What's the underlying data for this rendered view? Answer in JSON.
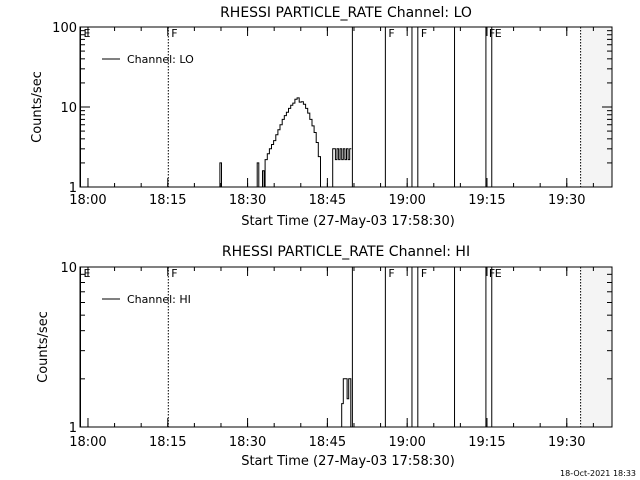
{
  "footer": {
    "timestamp": "18-Oct-2021 18:33"
  },
  "chart_data": [
    {
      "type": "line",
      "title": "RHESSI PARTICLE_RATE Channel: LO",
      "xlabel": "Start Time (27-May-03 17:58:30)",
      "ylabel": "Counts/sec",
      "y_scale": "log",
      "xlim_minutes": [
        0,
        100
      ],
      "ylim": [
        1,
        100
      ],
      "x_ticks": [
        {
          "t": 1.5,
          "label": "18:00"
        },
        {
          "t": 16.5,
          "label": "18:15"
        },
        {
          "t": 31.5,
          "label": "18:30"
        },
        {
          "t": 46.5,
          "label": "18:45"
        },
        {
          "t": 61.5,
          "label": "19:00"
        },
        {
          "t": 76.5,
          "label": "19:15"
        },
        {
          "t": 91.5,
          "label": "19:30"
        }
      ],
      "y_ticks": [
        {
          "v": 1,
          "label": "1"
        },
        {
          "v": 10,
          "label": "10"
        },
        {
          "v": 100,
          "label": "100"
        }
      ],
      "legend": {
        "label": "Channel: LO",
        "position": "top-left"
      },
      "series": [
        {
          "name": "Channel: LO",
          "points": [
            [
              26.3,
              1
            ],
            [
              26.3,
              2
            ],
            [
              26.6,
              2
            ],
            [
              26.6,
              1
            ],
            [
              33.3,
              1
            ],
            [
              33.3,
              2
            ],
            [
              33.6,
              2
            ],
            [
              33.6,
              1
            ],
            [
              34.3,
              1
            ],
            [
              34.3,
              1.6
            ],
            [
              34.6,
              1.6
            ],
            [
              34.6,
              1
            ],
            [
              34.8,
              1
            ],
            [
              34.8,
              2.2
            ],
            [
              35.2,
              2.2
            ],
            [
              35.2,
              2.6
            ],
            [
              35.6,
              2.6
            ],
            [
              35.6,
              3
            ],
            [
              36.0,
              3
            ],
            [
              36.0,
              3.4
            ],
            [
              36.4,
              3.4
            ],
            [
              36.4,
              3.8
            ],
            [
              36.8,
              3.8
            ],
            [
              36.8,
              4.5
            ],
            [
              37.2,
              4.5
            ],
            [
              37.2,
              5.2
            ],
            [
              37.6,
              5.2
            ],
            [
              37.6,
              6
            ],
            [
              38.0,
              6
            ],
            [
              38.0,
              7
            ],
            [
              38.4,
              7
            ],
            [
              38.4,
              7.8
            ],
            [
              38.8,
              7.8
            ],
            [
              38.8,
              8.6
            ],
            [
              39.2,
              8.6
            ],
            [
              39.2,
              9.6
            ],
            [
              39.6,
              9.6
            ],
            [
              39.6,
              10.5
            ],
            [
              40.0,
              10.5
            ],
            [
              40.0,
              11.2
            ],
            [
              40.4,
              11.2
            ],
            [
              40.4,
              12.5
            ],
            [
              40.8,
              12.5
            ],
            [
              40.8,
              13
            ],
            [
              41.2,
              13
            ],
            [
              41.2,
              11.5
            ],
            [
              41.6,
              11.5
            ],
            [
              41.6,
              11.6
            ],
            [
              42.0,
              11.6
            ],
            [
              42.0,
              10.8
            ],
            [
              42.4,
              10.8
            ],
            [
              42.4,
              9.6
            ],
            [
              42.8,
              9.6
            ],
            [
              42.8,
              8.4
            ],
            [
              43.2,
              8.4
            ],
            [
              43.2,
              7
            ],
            [
              43.6,
              7
            ],
            [
              43.6,
              5.8
            ],
            [
              44.0,
              5.8
            ],
            [
              44.0,
              4.8
            ],
            [
              44.4,
              4.8
            ],
            [
              44.4,
              3.6
            ],
            [
              44.8,
              3.6
            ],
            [
              44.8,
              2.4
            ],
            [
              45.2,
              2.4
            ],
            [
              45.2,
              1
            ],
            [
              47.5,
              1
            ],
            [
              47.5,
              3
            ],
            [
              48.0,
              3
            ],
            [
              48.0,
              2.2
            ],
            [
              48.3,
              2.2
            ],
            [
              48.3,
              3
            ],
            [
              48.6,
              3
            ],
            [
              48.6,
              2.2
            ],
            [
              48.9,
              2.2
            ],
            [
              48.9,
              3
            ],
            [
              49.2,
              3
            ],
            [
              49.2,
              2.2
            ],
            [
              49.5,
              2.2
            ],
            [
              49.5,
              3
            ],
            [
              49.8,
              3
            ],
            [
              49.8,
              2.2
            ],
            [
              50.1,
              2.2
            ],
            [
              50.1,
              3
            ],
            [
              50.4,
              3
            ],
            [
              50.4,
              2.2
            ],
            [
              50.7,
              2.2
            ],
            [
              50.7,
              3
            ],
            [
              51.0,
              3
            ]
          ]
        }
      ],
      "markers": [
        {
          "t": 0.0,
          "style": "solid",
          "label": "E"
        },
        {
          "t": 16.6,
          "style": "dotted",
          "label": "F"
        },
        {
          "t": 51.2,
          "style": "solid",
          "label": ""
        },
        {
          "t": 57.4,
          "style": "solid",
          "label": "F"
        },
        {
          "t": 62.4,
          "style": "solid",
          "label": ""
        },
        {
          "t": 63.5,
          "style": "solid",
          "label": "F"
        },
        {
          "t": 70.4,
          "style": "solid",
          "label": ""
        },
        {
          "t": 76.3,
          "style": "solid",
          "label": "F"
        },
        {
          "t": 77.4,
          "style": "solid",
          "label": "E"
        },
        {
          "t": 94.1,
          "style": "dotted",
          "label": ""
        }
      ]
    },
    {
      "type": "line",
      "title": "RHESSI PARTICLE_RATE Channel: HI",
      "xlabel": "Start Time (27-May-03 17:58:30)",
      "ylabel": "Counts/sec",
      "y_scale": "log",
      "xlim_minutes": [
        0,
        100
      ],
      "ylim": [
        1,
        10
      ],
      "x_ticks": [
        {
          "t": 1.5,
          "label": "18:00"
        },
        {
          "t": 16.5,
          "label": "18:15"
        },
        {
          "t": 31.5,
          "label": "18:30"
        },
        {
          "t": 46.5,
          "label": "18:45"
        },
        {
          "t": 61.5,
          "label": "19:00"
        },
        {
          "t": 76.5,
          "label": "19:15"
        },
        {
          "t": 91.5,
          "label": "19:30"
        }
      ],
      "y_ticks": [
        {
          "v": 1,
          "label": "1"
        },
        {
          "v": 10,
          "label": "10"
        }
      ],
      "legend": {
        "label": "Channel: HI",
        "position": "top-left"
      },
      "series": [
        {
          "name": "Channel: HI",
          "points": [
            [
              49.2,
              1
            ],
            [
              49.2,
              1.4
            ],
            [
              49.5,
              1.4
            ],
            [
              49.5,
              2
            ],
            [
              50.2,
              2
            ],
            [
              50.2,
              1.5
            ],
            [
              50.5,
              1.5
            ],
            [
              50.5,
              2
            ],
            [
              50.9,
              2
            ],
            [
              50.9,
              1
            ]
          ]
        }
      ],
      "markers": [
        {
          "t": 0.0,
          "style": "solid",
          "label": "E"
        },
        {
          "t": 16.6,
          "style": "dotted",
          "label": "F"
        },
        {
          "t": 51.2,
          "style": "solid",
          "label": ""
        },
        {
          "t": 57.4,
          "style": "solid",
          "label": "F"
        },
        {
          "t": 62.4,
          "style": "solid",
          "label": ""
        },
        {
          "t": 63.5,
          "style": "solid",
          "label": "F"
        },
        {
          "t": 70.4,
          "style": "solid",
          "label": ""
        },
        {
          "t": 76.3,
          "style": "solid",
          "label": "F"
        },
        {
          "t": 77.4,
          "style": "solid",
          "label": "E"
        },
        {
          "t": 94.1,
          "style": "dotted",
          "label": ""
        }
      ]
    }
  ]
}
